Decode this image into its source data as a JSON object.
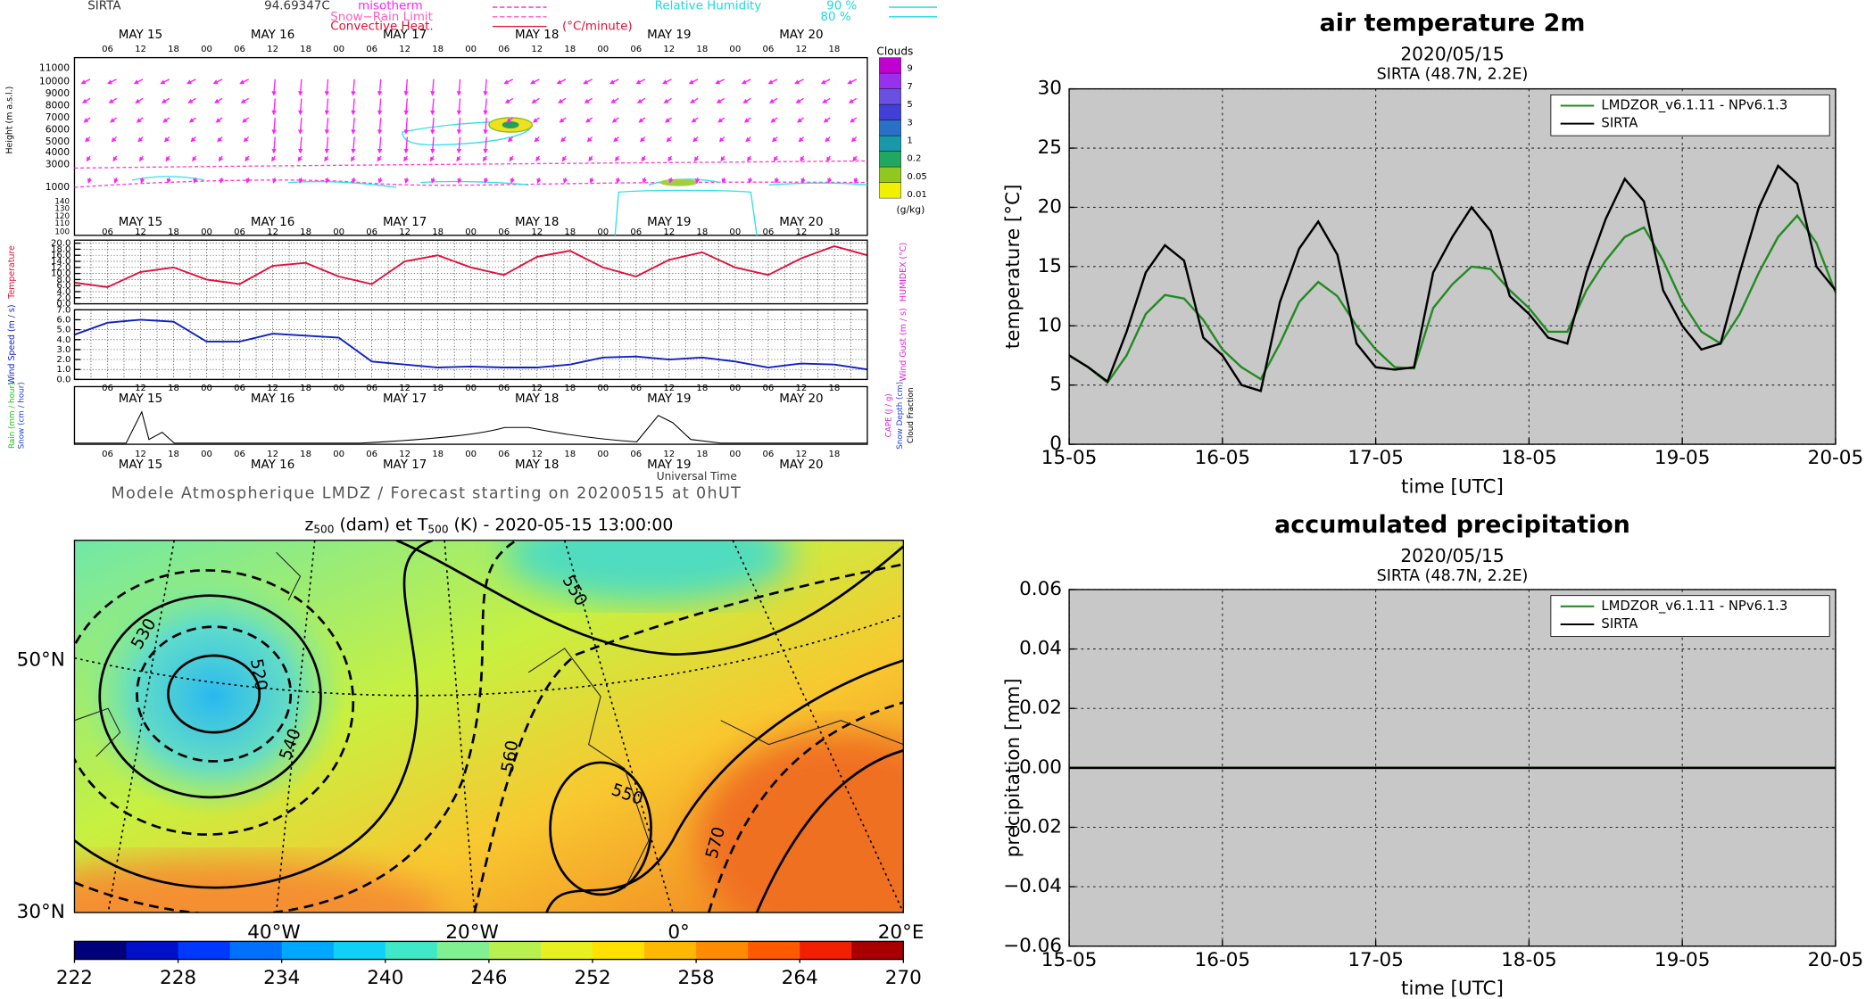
{
  "chart_data": [
    {
      "type": "line",
      "title": "air temperature 2m",
      "subtitle": "2020/05/15",
      "station": "SIRTA (48.7N, 2.2E)",
      "x_label": "time [UTC]",
      "y_label": "temperature [°C]",
      "x": [
        0,
        0.125,
        0.25,
        0.375,
        0.5,
        0.625,
        0.75,
        0.875,
        1,
        1.125,
        1.25,
        1.375,
        1.5,
        1.625,
        1.75,
        1.875,
        2,
        2.125,
        2.25,
        2.375,
        2.5,
        2.625,
        2.75,
        2.875,
        3,
        3.125,
        3.25,
        3.375,
        3.5,
        3.625,
        3.75,
        3.875,
        4,
        4.125,
        4.25,
        4.375,
        4.5,
        4.625,
        4.75,
        4.875,
        5
      ],
      "xlim": [
        0,
        5
      ],
      "xticks": [
        {
          "value": 0,
          "label": "15-05"
        },
        {
          "value": 1,
          "label": "16-05"
        },
        {
          "value": 2,
          "label": "17-05"
        },
        {
          "value": 3,
          "label": "18-05"
        },
        {
          "value": 4,
          "label": "19-05"
        },
        {
          "value": 5,
          "label": "20-05"
        }
      ],
      "ylim": [
        0,
        30
      ],
      "yticks": [
        0,
        5,
        10,
        15,
        20,
        25,
        30
      ],
      "grid": true,
      "legend": "upper right",
      "series": [
        {
          "name": "LMDZOR_v6.1.11 - NPv6.1.3",
          "color": "#228b22",
          "values": [
            7.5,
            6.5,
            5.2,
            7.5,
            11,
            12.6,
            12.3,
            10.5,
            8,
            6.5,
            5.5,
            8.5,
            12,
            13.7,
            12.5,
            10,
            8,
            6.5,
            6.4,
            11.5,
            13.5,
            15,
            14.8,
            13,
            11.5,
            9.5,
            9.5,
            13,
            15.5,
            17.5,
            18.3,
            15.5,
            12,
            9.5,
            8.5,
            11,
            14.5,
            17.5,
            19.3,
            17,
            12.8
          ]
        },
        {
          "name": "SIRTA",
          "color": "#000000",
          "values": [
            7.5,
            6.5,
            5.3,
            9.5,
            14.5,
            16.8,
            15.5,
            9,
            7.5,
            5,
            4.5,
            12,
            16.5,
            18.8,
            16,
            8.5,
            6.5,
            6.3,
            6.5,
            14.5,
            17.5,
            20,
            18,
            12.5,
            11,
            9,
            8.5,
            14.5,
            19,
            22.4,
            20.5,
            13,
            10,
            8,
            8.5,
            14.5,
            20,
            23.5,
            22,
            15,
            13
          ]
        }
      ]
    },
    {
      "type": "line",
      "title": "accumulated precipitation",
      "subtitle": "2020/05/15",
      "station": "SIRTA (48.7N, 2.2E)",
      "x_label": "time [UTC]",
      "y_label": "precipitation [mm]",
      "x": [
        0,
        5
      ],
      "xlim": [
        0,
        5
      ],
      "xticks": [
        {
          "value": 0,
          "label": "15-05"
        },
        {
          "value": 1,
          "label": "16-05"
        },
        {
          "value": 2,
          "label": "17-05"
        },
        {
          "value": 3,
          "label": "18-05"
        },
        {
          "value": 4,
          "label": "19-05"
        },
        {
          "value": 5,
          "label": "20-05"
        }
      ],
      "ylim": [
        -0.06,
        0.06
      ],
      "yticks": [
        {
          "value": -0.06,
          "label": "−0.06"
        },
        {
          "value": -0.04,
          "label": "−0.04"
        },
        {
          "value": -0.02,
          "label": "−0.02"
        },
        {
          "value": 0,
          "label": "0.00"
        },
        {
          "value": 0.02,
          "label": "0.02"
        },
        {
          "value": 0.04,
          "label": "0.04"
        },
        {
          "value": 0.06,
          "label": "0.06"
        }
      ],
      "grid": true,
      "legend": "upper right",
      "series": [
        {
          "name": "LMDZOR_v6.1.11 - NPv6.1.3",
          "color": "#228b22",
          "values": [
            0,
            0
          ]
        },
        {
          "name": "SIRTA",
          "color": "#000000",
          "values": [
            0,
            0
          ]
        }
      ]
    },
    {
      "type": "line",
      "y_label": "Temperature",
      "y2_label": "HUMIDEX (°C)",
      "x": [
        0,
        6,
        12,
        18,
        24,
        30,
        36,
        42,
        48,
        54,
        60,
        66,
        72,
        78,
        84,
        90,
        96,
        102,
        108,
        114,
        120,
        126,
        132,
        138,
        144
      ],
      "xlim": [
        0,
        144
      ],
      "ylim": [
        0,
        21
      ],
      "yticks": [
        {
          "value": 0,
          "label": "0.0"
        },
        {
          "value": 2,
          "label": "2.0"
        },
        {
          "value": 4,
          "label": "4.0"
        },
        {
          "value": 6,
          "label": "6.0"
        },
        {
          "value": 8,
          "label": "8.0"
        },
        {
          "value": 10,
          "label": "10.0"
        },
        {
          "value": 12,
          "label": "12.0"
        },
        {
          "value": 14,
          "label": "14.0"
        },
        {
          "value": 16,
          "label": "16.0"
        },
        {
          "value": 18,
          "label": "18.0"
        },
        {
          "value": 20,
          "label": "20.0"
        }
      ],
      "grid": true,
      "series": [
        {
          "color": "#e0103a",
          "values": [
            7,
            5.5,
            10.5,
            12,
            8,
            6.5,
            12.5,
            13.5,
            9,
            6.5,
            14,
            16,
            12,
            9.5,
            15.5,
            17.5,
            12,
            9,
            14.5,
            17,
            12,
            9.5,
            15,
            19,
            16
          ]
        }
      ]
    },
    {
      "type": "line",
      "y_label": "Wind Speed (m / s)",
      "y2_label": "Wind Gust (m / s)",
      "x": [
        0,
        6,
        12,
        18,
        24,
        30,
        36,
        42,
        48,
        54,
        60,
        66,
        72,
        78,
        84,
        90,
        96,
        102,
        108,
        114,
        120,
        126,
        132,
        138,
        144
      ],
      "xlim": [
        0,
        144
      ],
      "ylim": [
        0,
        7
      ],
      "yticks": [
        {
          "value": 0,
          "label": "0.0"
        },
        {
          "value": 1,
          "label": "1.0"
        },
        {
          "value": 2,
          "label": "2.0"
        },
        {
          "value": 3,
          "label": "3.0"
        },
        {
          "value": 4,
          "label": "4.0"
        },
        {
          "value": 5,
          "label": "5.0"
        },
        {
          "value": 6,
          "label": "6.0"
        },
        {
          "value": 7,
          "label": "7.0"
        }
      ],
      "grid": true,
      "series": [
        {
          "color": "#1020c0",
          "values": [
            4.5,
            5.7,
            6,
            5.8,
            3.8,
            3.8,
            4.6,
            4.4,
            4.2,
            1.8,
            1.5,
            1.2,
            1.3,
            1.2,
            1.2,
            1.5,
            2.2,
            2.3,
            2,
            2.2,
            1.8,
            1.2,
            1.6,
            1.5,
            1
          ]
        }
      ]
    }
  ],
  "meteogram": {
    "station": "SIRTA",
    "altitude": "94.69347C",
    "legend": {
      "isotherm": "misotherm",
      "snow_rain": "Snow−Rain Limit",
      "convective": "Convective Heat.",
      "convective_unit": "(°C/minute)",
      "humidity": "Relative Humidity",
      "rh1": "90 %",
      "rh2": "80 %"
    },
    "height_title": "Height (m a.s.l.)",
    "height_labels": [
      "11000",
      "10000",
      "9000",
      "8000",
      "7000",
      "6000",
      "5000",
      "4000",
      "3000",
      "1000",
      "140",
      "130",
      "120",
      "110",
      "100"
    ],
    "clouds_title": "Clouds",
    "clouds_unit": "(g/kg)",
    "cloud_labels": [
      "9",
      "7",
      "5",
      "3",
      "1",
      "0.2",
      "0.05",
      "0.01"
    ],
    "cloud_colors": [
      "#c000d0",
      "#9830f0",
      "#6a50e0",
      "#4040d8",
      "#2870c8",
      "#1898a8",
      "#20a860",
      "#90c820",
      "#f0f000"
    ],
    "rain_label": "Rain (mm / hour)",
    "snow_label": "Snow (cm / hour)",
    "cape_label": "CAPE (J / g)",
    "depth_label": "Snow Depth (cm)",
    "fraction_label": "Cloud Fraction",
    "hour_ticks": [
      {
        "value": 6,
        "label": "06"
      },
      {
        "value": 12,
        "label": "12"
      },
      {
        "value": 18,
        "label": "18"
      },
      {
        "value": 24,
        "label": "00"
      },
      {
        "value": 30,
        "label": "06"
      },
      {
        "value": 36,
        "label": "12"
      },
      {
        "value": 42,
        "label": "18"
      },
      {
        "value": 48,
        "label": "00"
      },
      {
        "value": 54,
        "label": "06"
      },
      {
        "value": 60,
        "label": "12"
      },
      {
        "value": 66,
        "label": "18"
      },
      {
        "value": 72,
        "label": "00"
      },
      {
        "value": 78,
        "label": "06"
      },
      {
        "value": 84,
        "label": "12"
      },
      {
        "value": 90,
        "label": "18"
      },
      {
        "value": 96,
        "label": "00"
      },
      {
        "value": 102,
        "label": "06"
      },
      {
        "value": 108,
        "label": "12"
      },
      {
        "value": 114,
        "label": "18"
      },
      {
        "value": 120,
        "label": "00"
      },
      {
        "value": 126,
        "label": "06"
      },
      {
        "value": 132,
        "label": "12"
      },
      {
        "value": 138,
        "label": "18"
      }
    ],
    "day_ticks": [
      {
        "value": 12,
        "label": "MAY 15"
      },
      {
        "value": 36,
        "label": "MAY 16"
      },
      {
        "value": 60,
        "label": "MAY 17"
      },
      {
        "value": 84,
        "label": "MAY 18"
      },
      {
        "value": 108,
        "label": "MAY 19"
      },
      {
        "value": 132,
        "label": "MAY 20"
      }
    ],
    "time_label": "Universal Time",
    "footer": "Modele Atmospherique LMDZ / Forecast starting on 20200515 at 0hUT"
  },
  "map": {
    "title": {
      "z": "z",
      "sub1": "500",
      "mid": " (dam) et T",
      "sub2": "500",
      "rest": " (K) - 2020-05-15 13:00:00"
    },
    "lat_labels": [
      "50°N",
      "30°N"
    ],
    "lon_labels": [
      "40°W",
      "20°W",
      "0°",
      "20°E"
    ],
    "contour_labels": [
      "530",
      "520",
      "540",
      "560",
      "550",
      "570",
      "550"
    ],
    "colorbar": {
      "lim": [
        222,
        270
      ],
      "ticks": [
        222,
        228,
        234,
        240,
        246,
        252,
        258,
        264,
        270
      ],
      "colors": [
        "#00007a",
        "#0010c8",
        "#0038ff",
        "#0070ff",
        "#00a8ff",
        "#10d0f8",
        "#40e8c8",
        "#80f090",
        "#b8f050",
        "#e8f020",
        "#ffe000",
        "#ffb800",
        "#ff8c00",
        "#ff5a00",
        "#f02000",
        "#a80000"
      ]
    }
  }
}
